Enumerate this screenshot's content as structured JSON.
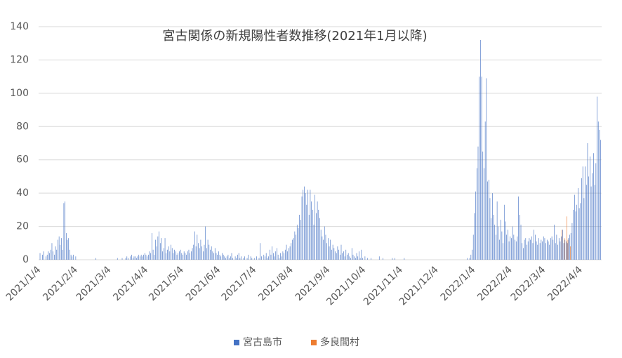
{
  "chart_data": {
    "type": "bar",
    "title": "宮古関係の新規陽性者数推移(2021年1月以降)",
    "categories": [
      "2021/1/4",
      null,
      null,
      null,
      null,
      null,
      null,
      null,
      null,
      null,
      null,
      null,
      null,
      null,
      null,
      null,
      null,
      null,
      null,
      null,
      null,
      null,
      null,
      null,
      null,
      null,
      null,
      null,
      null,
      null,
      null,
      "2021/2/4",
      null,
      null,
      null,
      null,
      null,
      null,
      null,
      null,
      null,
      null,
      null,
      null,
      null,
      null,
      null,
      null,
      null,
      null,
      null,
      null,
      null,
      null,
      null,
      null,
      null,
      null,
      null,
      "2021/3/4",
      null,
      null,
      null,
      null,
      null,
      null,
      null,
      null,
      null,
      null,
      null,
      null,
      null,
      null,
      null,
      null,
      null,
      null,
      null,
      null,
      null,
      null,
      null,
      null,
      null,
      null,
      null,
      null,
      null,
      null,
      "2021/4/4",
      null,
      null,
      null,
      null,
      null,
      null,
      null,
      null,
      null,
      null,
      null,
      null,
      null,
      null,
      null,
      null,
      null,
      null,
      null,
      null,
      null,
      null,
      null,
      null,
      null,
      null,
      null,
      null,
      null,
      "2021/5/4",
      null,
      null,
      null,
      null,
      null,
      null,
      null,
      null,
      null,
      null,
      null,
      null,
      null,
      null,
      null,
      null,
      null,
      null,
      null,
      null,
      null,
      null,
      null,
      null,
      null,
      null,
      null,
      null,
      null,
      null,
      "2021/6/4",
      null,
      null,
      null,
      null,
      null,
      null,
      null,
      null,
      null,
      null,
      null,
      null,
      null,
      null,
      null,
      null,
      null,
      null,
      null,
      null,
      null,
      null,
      null,
      null,
      null,
      null,
      null,
      null,
      null,
      "2021/7/4",
      null,
      null,
      null,
      null,
      null,
      null,
      null,
      null,
      null,
      null,
      null,
      null,
      null,
      null,
      null,
      null,
      null,
      null,
      null,
      null,
      null,
      null,
      null,
      null,
      null,
      null,
      null,
      null,
      null,
      null,
      "2021/8/4",
      null,
      null,
      null,
      null,
      null,
      null,
      null,
      null,
      null,
      null,
      null,
      null,
      null,
      null,
      null,
      null,
      null,
      null,
      null,
      null,
      null,
      null,
      null,
      null,
      null,
      null,
      null,
      null,
      null,
      null,
      "2021/9/4",
      null,
      null,
      null,
      null,
      null,
      null,
      null,
      null,
      null,
      null,
      null,
      null,
      null,
      null,
      null,
      null,
      null,
      null,
      null,
      null,
      null,
      null,
      null,
      null,
      null,
      null,
      null,
      null,
      null,
      "2021/10/4",
      null,
      null,
      null,
      null,
      null,
      null,
      null,
      null,
      null,
      null,
      null,
      null,
      null,
      null,
      null,
      null,
      null,
      null,
      null,
      null,
      null,
      null,
      null,
      null,
      null,
      null,
      null,
      null,
      null,
      null,
      "2021/11/4",
      null,
      null,
      null,
      null,
      null,
      null,
      null,
      null,
      null,
      null,
      null,
      null,
      null,
      null,
      null,
      null,
      null,
      null,
      null,
      null,
      null,
      null,
      null,
      null,
      null,
      null,
      null,
      null,
      null,
      "2021/12/4",
      null,
      null,
      null,
      null,
      null,
      null,
      null,
      null,
      null,
      null,
      null,
      null,
      null,
      null,
      null,
      null,
      null,
      null,
      null,
      null,
      null,
      null,
      null,
      null,
      null,
      null,
      null,
      null,
      null,
      null,
      "2022/1/4",
      null,
      null,
      null,
      null,
      null,
      null,
      null,
      null,
      null,
      null,
      null,
      null,
      null,
      null,
      null,
      null,
      null,
      null,
      null,
      null,
      null,
      null,
      null,
      null,
      null,
      null,
      null,
      null,
      null,
      null,
      "2022/2/4",
      null,
      null,
      null,
      null,
      null,
      null,
      null,
      null,
      null,
      null,
      null,
      null,
      null,
      null,
      null,
      null,
      null,
      null,
      null,
      null,
      null,
      null,
      null,
      null,
      null,
      null,
      null,
      "2022/3/4",
      null,
      null,
      null,
      null,
      null,
      null,
      null,
      null,
      null,
      null,
      null,
      null,
      null,
      null,
      null,
      null,
      null,
      null,
      null,
      null,
      null,
      null,
      null,
      null,
      null,
      null,
      null,
      null,
      null,
      null,
      "2022/4/4",
      null,
      null,
      null,
      null,
      null,
      null,
      null,
      null,
      null,
      null,
      null,
      null,
      null,
      null,
      null,
      null,
      null
    ],
    "series": [
      {
        "name": "宮古島市",
        "color": "#4472c4",
        "values": [
          0,
          4,
          0,
          3,
          5,
          0,
          2,
          3,
          5,
          4,
          6,
          10,
          5,
          3,
          8,
          6,
          12,
          14,
          9,
          13,
          6,
          34,
          35,
          16,
          12,
          13,
          6,
          3,
          2,
          3,
          0,
          2,
          0,
          0,
          0,
          0,
          0,
          0,
          0,
          0,
          0,
          0,
          0,
          0,
          0,
          0,
          0,
          0,
          1,
          0,
          0,
          0,
          0,
          0,
          0,
          0,
          0,
          0,
          0,
          0,
          0,
          0,
          0,
          0,
          0,
          0,
          1,
          0,
          0,
          0,
          1,
          0,
          0,
          1,
          2,
          1,
          0,
          2,
          3,
          1,
          2,
          2,
          1,
          2,
          3,
          2,
          3,
          2,
          3,
          4,
          3,
          2,
          3,
          5,
          4,
          16,
          6,
          3,
          12,
          8,
          14,
          17,
          10,
          13,
          5,
          7,
          13,
          4,
          6,
          8,
          5,
          9,
          7,
          4,
          6,
          5,
          3,
          4,
          5,
          6,
          4,
          3,
          5,
          4,
          3,
          5,
          6,
          4,
          5,
          7,
          9,
          17,
          8,
          15,
          10,
          7,
          12,
          8,
          5,
          9,
          20,
          7,
          12,
          9,
          6,
          8,
          5,
          4,
          7,
          4,
          3,
          5,
          3,
          2,
          4,
          3,
          2,
          1,
          2,
          3,
          1,
          2,
          4,
          1,
          0,
          2,
          1,
          3,
          4,
          1,
          2,
          0,
          1,
          2,
          0,
          1,
          3,
          0,
          2,
          1,
          0,
          1,
          0,
          2,
          0,
          1,
          10,
          2,
          0,
          3,
          2,
          4,
          1,
          2,
          6,
          3,
          8,
          4,
          2,
          5,
          7,
          3,
          1,
          4,
          2,
          5,
          4,
          6,
          9,
          5,
          7,
          8,
          10,
          12,
          13,
          17,
          15,
          21,
          19,
          27,
          24,
          38,
          42,
          44,
          40,
          33,
          42,
          27,
          42,
          35,
          30,
          21,
          39,
          28,
          35,
          30,
          25,
          18,
          14,
          12,
          20,
          15,
          10,
          13,
          8,
          12,
          6,
          9,
          7,
          5,
          4,
          8,
          6,
          3,
          9,
          4,
          5,
          2,
          6,
          3,
          4,
          2,
          1,
          7,
          3,
          2,
          1,
          4,
          2,
          5,
          1,
          6,
          1,
          0,
          2,
          0,
          1,
          0,
          0,
          1,
          0,
          0,
          0,
          0,
          0,
          0,
          2,
          0,
          0,
          1,
          0,
          0,
          0,
          0,
          0,
          0,
          0,
          1,
          0,
          1,
          0,
          0,
          0,
          0,
          0,
          0,
          0,
          1,
          0,
          0,
          0,
          0,
          0,
          0,
          0,
          0,
          0,
          0,
          0,
          0,
          0,
          0,
          0,
          0,
          0,
          0,
          0,
          0,
          0,
          0,
          0,
          0,
          0,
          0,
          0,
          0,
          0,
          0,
          0,
          0,
          0,
          0,
          0,
          0,
          0,
          0,
          0,
          0,
          0,
          0,
          0,
          0,
          0,
          0,
          0,
          0,
          0,
          0,
          0,
          0,
          1,
          0,
          1,
          3,
          6,
          15,
          28,
          41,
          55,
          68,
          110,
          132,
          110,
          65,
          55,
          83,
          109,
          47,
          48,
          37,
          25,
          40,
          27,
          21,
          15,
          35,
          20,
          12,
          24,
          17,
          10,
          33,
          23,
          15,
          18,
          11,
          14,
          13,
          20,
          15,
          12,
          11,
          14,
          38,
          27,
          21,
          10,
          7,
          12,
          13,
          9,
          11,
          13,
          12,
          14,
          10,
          18,
          15,
          11,
          9,
          13,
          10,
          12,
          11,
          14,
          13,
          10,
          12,
          11,
          9,
          13,
          14,
          12,
          21,
          10,
          15,
          9,
          13,
          11,
          14,
          18,
          10,
          12,
          11,
          10,
          13,
          15,
          16,
          22,
          30,
          39,
          29,
          33,
          43,
          31,
          34,
          49,
          56,
          37,
          56,
          45,
          70,
          50,
          62,
          44,
          52,
          64,
          45,
          58,
          98,
          83,
          78,
          72
        ]
      },
      {
        "name": "多良間村",
        "color": "#ed7d31",
        "values": [
          0,
          0,
          0,
          0,
          0,
          0,
          0,
          0,
          0,
          0,
          0,
          0,
          0,
          0,
          0,
          0,
          0,
          0,
          0,
          0,
          0,
          0,
          0,
          0,
          0,
          0,
          0,
          0,
          0,
          0,
          0,
          0,
          0,
          0,
          0,
          0,
          0,
          0,
          0,
          0,
          0,
          0,
          0,
          0,
          0,
          0,
          0,
          0,
          0,
          0,
          0,
          0,
          0,
          0,
          0,
          0,
          0,
          0,
          0,
          0,
          0,
          0,
          0,
          0,
          0,
          0,
          0,
          0,
          0,
          0,
          0,
          0,
          0,
          0,
          0,
          0,
          0,
          0,
          0,
          0,
          0,
          0,
          0,
          0,
          0,
          0,
          0,
          0,
          0,
          0,
          0,
          0,
          0,
          0,
          0,
          0,
          0,
          0,
          0,
          0,
          0,
          0,
          0,
          0,
          0,
          0,
          0,
          0,
          0,
          0,
          0,
          0,
          0,
          0,
          0,
          0,
          0,
          0,
          0,
          0,
          0,
          0,
          0,
          0,
          0,
          0,
          0,
          0,
          0,
          0,
          0,
          0,
          0,
          0,
          0,
          0,
          0,
          0,
          0,
          0,
          0,
          0,
          0,
          0,
          0,
          0,
          0,
          0,
          0,
          0,
          0,
          0,
          0,
          0,
          0,
          0,
          0,
          0,
          0,
          0,
          0,
          0,
          0,
          0,
          0,
          0,
          0,
          0,
          0,
          0,
          0,
          0,
          0,
          0,
          0,
          0,
          0,
          0,
          0,
          0,
          0,
          0,
          0,
          0,
          0,
          0,
          0,
          0,
          0,
          0,
          0,
          0,
          0,
          0,
          0,
          0,
          0,
          0,
          0,
          0,
          0,
          0,
          0,
          0,
          0,
          0,
          0,
          0,
          0,
          0,
          0,
          0,
          0,
          0,
          0,
          0,
          0,
          0,
          0,
          0,
          0,
          0,
          0,
          0,
          0,
          0,
          0,
          0,
          0,
          0,
          0,
          0,
          0,
          0,
          0,
          0,
          0,
          0,
          0,
          0,
          0,
          0,
          0,
          0,
          0,
          0,
          0,
          0,
          0,
          0,
          0,
          0,
          0,
          0,
          0,
          0,
          0,
          0,
          0,
          0,
          0,
          0,
          0,
          0,
          0,
          0,
          0,
          0,
          0,
          0,
          0,
          0,
          0,
          0,
          0,
          0,
          0,
          0,
          0,
          0,
          0,
          0,
          0,
          0,
          0,
          0,
          0,
          0,
          0,
          0,
          0,
          0,
          0,
          0,
          0,
          0,
          0,
          0,
          0,
          0,
          0,
          0,
          0,
          0,
          0,
          0,
          0,
          0,
          0,
          0,
          0,
          0,
          0,
          0,
          0,
          0,
          0,
          0,
          0,
          0,
          0,
          0,
          0,
          0,
          0,
          0,
          0,
          0,
          0,
          0,
          0,
          0,
          0,
          0,
          0,
          0,
          0,
          0,
          0,
          0,
          0,
          0,
          0,
          0,
          0,
          0,
          0,
          0,
          0,
          0,
          0,
          0,
          0,
          0,
          0,
          0,
          0,
          0,
          0,
          0,
          0,
          0,
          0,
          0,
          0,
          0,
          0,
          0,
          0,
          0,
          0,
          0,
          0,
          0,
          0,
          0,
          0,
          0,
          0,
          0,
          0,
          0,
          0,
          0,
          0,
          0,
          0,
          0,
          0,
          0,
          0,
          0,
          0,
          0,
          0,
          0,
          0,
          0,
          0,
          0,
          0,
          0,
          0,
          0,
          0,
          0,
          0,
          0,
          0,
          0,
          0,
          0,
          0,
          0,
          0,
          0,
          0,
          0,
          0,
          0,
          0,
          0,
          0,
          0,
          0,
          0,
          0,
          0,
          0,
          0,
          0,
          0,
          0,
          0,
          0,
          0,
          0,
          0,
          0,
          18,
          0,
          13,
          0,
          26,
          12,
          0,
          8,
          0,
          0,
          0,
          0,
          0,
          0,
          0,
          0,
          0,
          0,
          0,
          0,
          0,
          0,
          0,
          0,
          0,
          0,
          0,
          0,
          0,
          0,
          0,
          0,
          0,
          0
        ]
      }
    ],
    "ylim": [
      0,
      140
    ],
    "yticks": [
      0,
      20,
      40,
      60,
      80,
      100,
      120,
      140
    ],
    "grid": true,
    "legend": "bottom"
  }
}
